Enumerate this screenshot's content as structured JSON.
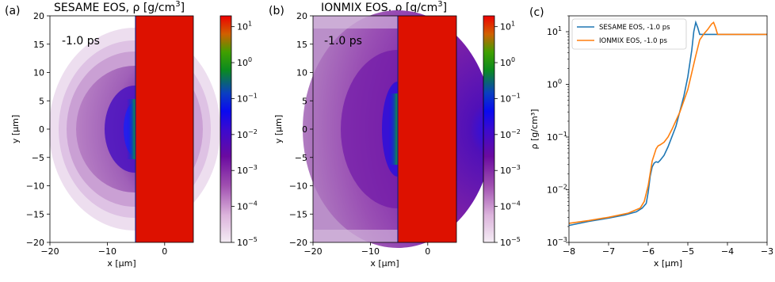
{
  "panels": [
    {
      "panel_label": "(a)",
      "title": "SESAME EOS, ρ [g/cm",
      "title_sup": "3",
      "title_end": "]",
      "annotation": "-1.0 ps"
    },
    {
      "panel_label": "(b)",
      "title": "IONMIX EOS, ρ [g/cm",
      "title_sup": "3",
      "title_end": "]",
      "annotation": "-1.0 ps"
    },
    {
      "panel_label": "(c)"
    }
  ],
  "colors": {
    "solid": "#dd1100",
    "sesame_line": "#1f77b4",
    "ionmix_line": "#ff7f0e"
  },
  "chart_data": [
    {
      "type": "heatmap",
      "title": "SESAME EOS, ρ [g/cm³]",
      "xlabel": "x [μm]",
      "ylabel": "y [μm]",
      "xlim": [
        -20,
        5
      ],
      "ylim": [
        -20,
        20
      ],
      "xticks": [
        "−20",
        "−10",
        "0"
      ],
      "yticks": [
        "20",
        "15",
        "10",
        "5",
        "0",
        "−5",
        "−10",
        "−15",
        "−20"
      ],
      "colorbar": {
        "scale": "log",
        "range": [
          1e-05,
          20
        ],
        "ticks": [
          "10",
          "10",
          "10",
          "10",
          "10",
          "10",
          "10"
        ],
        "tick_exponents": [
          "1",
          "0",
          "−1",
          "−2",
          "−3",
          "−4",
          "−5"
        ]
      },
      "target_front_x": -5,
      "target_back_x": 5,
      "target_density": 8.9
    },
    {
      "type": "heatmap",
      "title": "IONMIX EOS, ρ [g/cm³]",
      "xlabel": "x [μm]",
      "ylabel": "y [μm]",
      "xlim": [
        -20,
        5
      ],
      "ylim": [
        -20,
        20
      ],
      "xticks": [
        "−20",
        "−10",
        "0"
      ],
      "yticks": [
        "20",
        "15",
        "10",
        "5",
        "0",
        "−5",
        "−10",
        "−15",
        "−20"
      ],
      "colorbar": {
        "scale": "log",
        "range": [
          1e-05,
          20
        ],
        "ticks": [
          "10",
          "10",
          "10",
          "10",
          "10",
          "10",
          "10"
        ],
        "tick_exponents": [
          "1",
          "0",
          "−1",
          "−2",
          "−3",
          "−4",
          "−5"
        ]
      },
      "target_front_x": -5,
      "target_back_x": 5,
      "target_density": 8.9
    },
    {
      "type": "line",
      "xlabel": "x [μm]",
      "ylabel": "ρ [g/cm³]",
      "xlim": [
        -8,
        -3
      ],
      "ylim": [
        0.001,
        20
      ],
      "yscale": "log",
      "xticks": [
        "−8",
        "−7",
        "−6",
        "−5",
        "−4",
        "−3"
      ],
      "yticks": [
        "10",
        "10",
        "10",
        "10",
        "10"
      ],
      "ytick_exponents": [
        "1",
        "0",
        "−1",
        "−2",
        "−3"
      ],
      "legend_position": "top-left",
      "series": [
        {
          "name": "SESAME EOS, -1.0 ps",
          "x": [
            -8.0,
            -7.5,
            -7.0,
            -6.6,
            -6.3,
            -6.15,
            -6.05,
            -6.0,
            -5.95,
            -5.9,
            -5.85,
            -5.8,
            -5.75,
            -5.7,
            -5.6,
            -5.5,
            -5.3,
            -5.1,
            -5.0,
            -4.9,
            -4.85,
            -4.8,
            -4.75,
            -4.7,
            -4.6,
            -4.5,
            -4.0,
            -3.5,
            -3.0
          ],
          "y": [
            0.0021,
            0.0025,
            0.0029,
            0.0033,
            0.0038,
            0.0045,
            0.0055,
            0.009,
            0.018,
            0.027,
            0.032,
            0.034,
            0.033,
            0.036,
            0.045,
            0.065,
            0.16,
            0.6,
            1.4,
            4.5,
            10,
            15,
            12,
            8.9,
            8.9,
            8.9,
            8.9,
            8.9,
            8.9
          ]
        },
        {
          "name": "IONMIX EOS, -1.0 ps",
          "x": [
            -8.0,
            -7.5,
            -7.0,
            -6.5,
            -6.2,
            -6.1,
            -6.0,
            -5.9,
            -5.8,
            -5.75,
            -5.7,
            -5.6,
            -5.5,
            -5.4,
            -5.2,
            -5.0,
            -4.8,
            -4.7,
            -4.6,
            -4.5,
            -4.4,
            -4.35,
            -4.3,
            -4.25,
            -4.0,
            -3.5,
            -3.0
          ],
          "y": [
            0.0023,
            0.0026,
            0.003,
            0.0036,
            0.0045,
            0.006,
            0.012,
            0.035,
            0.06,
            0.068,
            0.071,
            0.08,
            0.1,
            0.14,
            0.3,
            0.8,
            3.5,
            7,
            9,
            11,
            14,
            15,
            12,
            8.9,
            8.9,
            8.9,
            8.9
          ]
        }
      ]
    }
  ]
}
